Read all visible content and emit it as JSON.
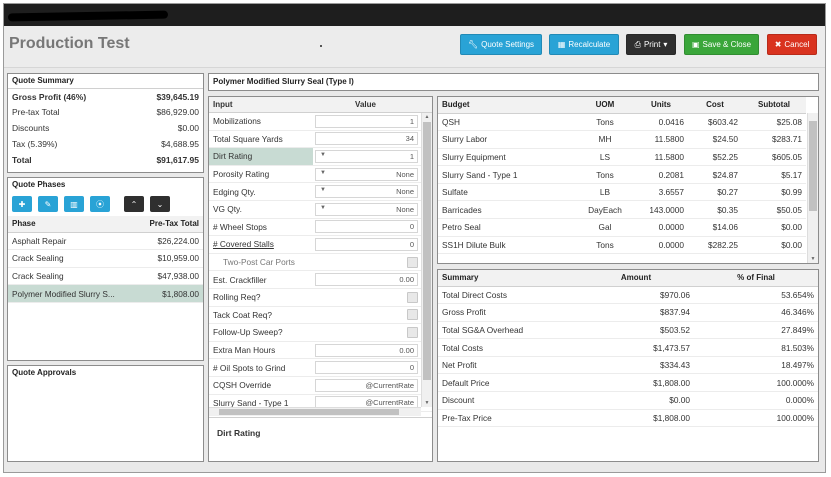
{
  "header": {
    "title": "Production Test",
    "buttons": {
      "quote_settings": "Quote Settings",
      "recalculate": "Recalculate",
      "print": "Print",
      "save_close": "Save & Close",
      "cancel": "Cancel"
    }
  },
  "colors": {
    "blue": "#29a3d6",
    "dark": "#2f2f2f",
    "green": "#3aa63a",
    "red": "#d9331f",
    "selected": "#c8dbd3"
  },
  "quote_summary": {
    "title": "Quote Summary",
    "rows": [
      {
        "label": "Gross Profit (46%)",
        "value": "$39,645.19"
      },
      {
        "label": "Pre-tax Total",
        "value": "$86,929.00"
      },
      {
        "label": "Discounts",
        "value": "$0.00"
      },
      {
        "label": "Tax (5.39%)",
        "value": "$4,688.95"
      },
      {
        "label": "Total",
        "value": "$91,617.95"
      }
    ]
  },
  "quote_phases": {
    "title": "Quote Phases",
    "icons": [
      "plus-icon",
      "pencil-icon",
      "trash-icon",
      "copy-icon",
      "chevron-up-icon",
      "chevron-down-icon"
    ],
    "columns": [
      "Phase",
      "Pre-Tax Total"
    ],
    "rows": [
      {
        "phase": "Asphalt Repair",
        "total": "$26,224.00"
      },
      {
        "phase": "Crack Sealing",
        "total": "$10,959.00"
      },
      {
        "phase": "Crack Sealing",
        "total": "$47,938.00"
      },
      {
        "phase": "Polymer Modified Slurry S...",
        "total": "$1,808.00"
      }
    ]
  },
  "quote_approvals": {
    "title": "Quote Approvals"
  },
  "phase_title": "Polymer Modified Slurry Seal (Type I)",
  "inputs": {
    "columns": [
      "Input",
      "Value"
    ],
    "rows": [
      {
        "label": "Mobilizations",
        "value": "1"
      },
      {
        "label": "Total Square Yards",
        "value": "34"
      },
      {
        "label": "Dirt Rating",
        "value": "1",
        "select": true
      },
      {
        "label": "Porosity Rating",
        "value": "None",
        "select": true
      },
      {
        "label": "Edging Qty.",
        "value": "None",
        "select": true
      },
      {
        "label": "VG Qty.",
        "value": "None",
        "select": true
      },
      {
        "label": "# Wheel Stops",
        "value": "0"
      },
      {
        "label": "# Covered Stalls",
        "value": "0"
      },
      {
        "label": "Two-Post Car Ports",
        "value": ""
      },
      {
        "label": "Est. Crackfiller",
        "value": "0.00"
      },
      {
        "label": "Rolling Req?",
        "value": ""
      },
      {
        "label": "Tack Coat Req?",
        "value": ""
      },
      {
        "label": "Follow-Up Sweep?",
        "value": ""
      },
      {
        "label": "Extra Man Hours",
        "value": "0.00"
      },
      {
        "label": "# Oil Spots to Grind",
        "value": "0"
      },
      {
        "label": "CQSH Override",
        "value": "@CurrentRate"
      },
      {
        "label": "Slurry Sand - Type 1",
        "value": "@CurrentRate"
      }
    ],
    "description_title": "Dirt Rating"
  },
  "budget": {
    "columns": [
      "Budget",
      "UOM",
      "Units",
      "Cost",
      "Subtotal"
    ],
    "rows": [
      {
        "item": "QSH",
        "uom": "Tons",
        "units": "0.0416",
        "cost": "$603.42",
        "subtotal": "$25.08"
      },
      {
        "item": "Slurry Labor",
        "uom": "MH",
        "units": "11.5800",
        "cost": "$24.50",
        "subtotal": "$283.71"
      },
      {
        "item": "Slurry Equipment",
        "uom": "LS",
        "units": "11.5800",
        "cost": "$52.25",
        "subtotal": "$605.05"
      },
      {
        "item": "Slurry Sand - Type 1",
        "uom": "Tons",
        "units": "0.2081",
        "cost": "$24.87",
        "subtotal": "$5.17"
      },
      {
        "item": "Sulfate",
        "uom": "LB",
        "units": "3.6557",
        "cost": "$0.27",
        "subtotal": "$0.99"
      },
      {
        "item": "Barricades",
        "uom": "DayEach",
        "units": "143.0000",
        "cost": "$0.35",
        "subtotal": "$50.05"
      },
      {
        "item": "Petro Seal",
        "uom": "Gal",
        "units": "0.0000",
        "cost": "$14.06",
        "subtotal": "$0.00"
      },
      {
        "item": "SS1H Dilute Bulk",
        "uom": "Tons",
        "units": "0.0000",
        "cost": "$282.25",
        "subtotal": "$0.00"
      }
    ]
  },
  "summary": {
    "columns": [
      "Summary",
      "Amount",
      "% of Final"
    ],
    "rows": [
      {
        "label": "Total Direct Costs",
        "amount": "$970.06",
        "pct": "53.654%"
      },
      {
        "label": "Gross Profit",
        "amount": "$837.94",
        "pct": "46.346%"
      },
      {
        "label": "Total SG&A Overhead",
        "amount": "$503.52",
        "pct": "27.849%"
      },
      {
        "label": "Total Costs",
        "amount": "$1,473.57",
        "pct": "81.503%"
      },
      {
        "label": "Net Profit",
        "amount": "$334.43",
        "pct": "18.497%"
      },
      {
        "label": "Default Price",
        "amount": "$1,808.00",
        "pct": "100.000%"
      },
      {
        "label": "Discount",
        "amount": "$0.00",
        "pct": "0.000%"
      },
      {
        "label": "Pre-Tax Price",
        "amount": "$1,808.00",
        "pct": "100.000%"
      }
    ]
  }
}
